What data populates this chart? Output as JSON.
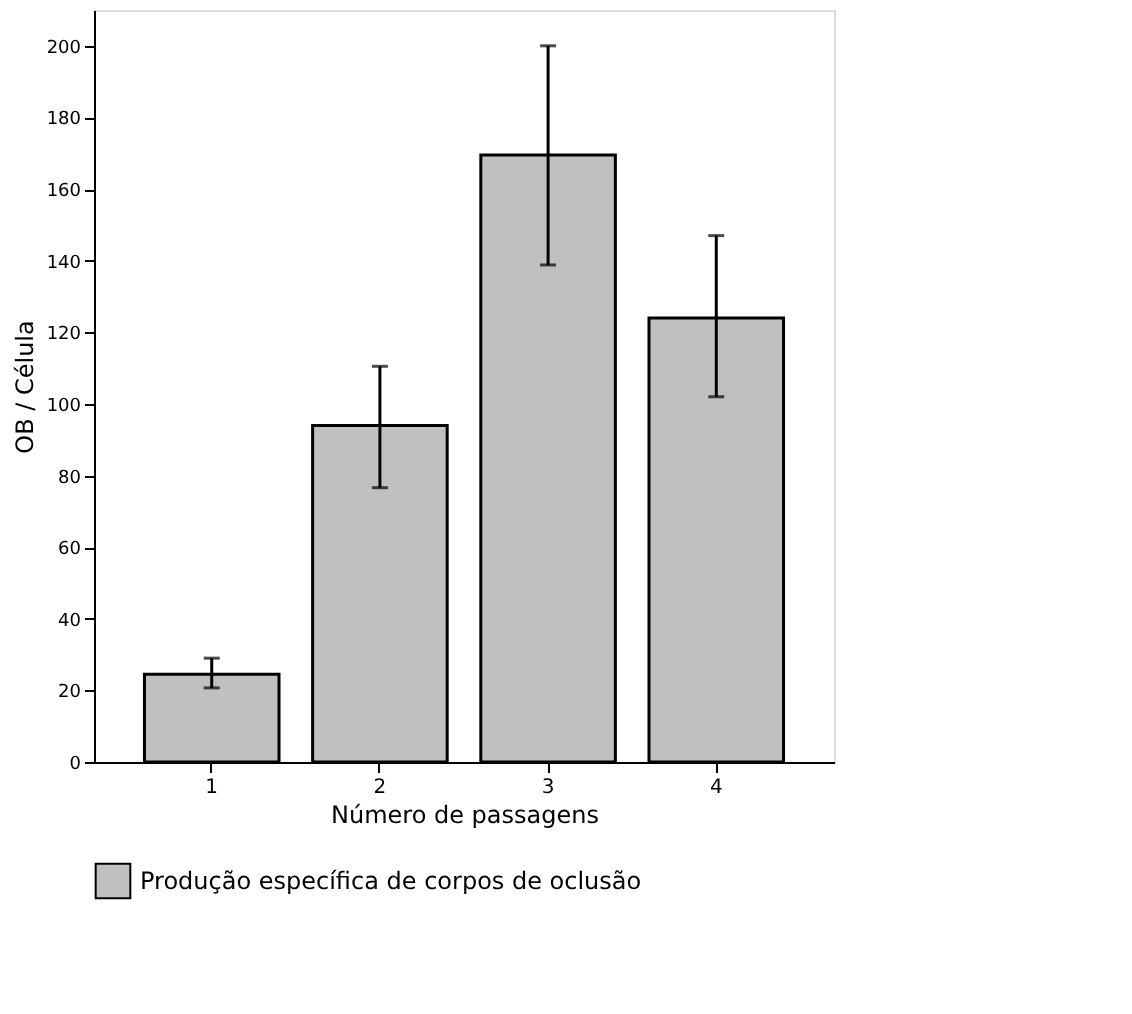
{
  "chart_data": {
    "type": "bar",
    "xlabel": "Número de passagens",
    "ylabel": "OB / Célula",
    "categories": [
      "1",
      "2",
      "3",
      "4"
    ],
    "series": [
      {
        "name": "Produção específica de corpos de oclusão",
        "color": "#c0c0c0",
        "values": [
          24.5,
          94,
          169.5,
          124
        ],
        "errors": [
          [
            20.7,
            29
          ],
          [
            76.6,
            110.5
          ],
          [
            138.8,
            200
          ],
          [
            102,
            147
          ]
        ]
      }
    ],
    "ylim": [
      0,
      210
    ],
    "yticks": [
      0,
      20,
      40,
      60,
      80,
      100,
      120,
      140,
      160,
      180,
      200
    ],
    "grid": false,
    "legend": "bottom"
  }
}
